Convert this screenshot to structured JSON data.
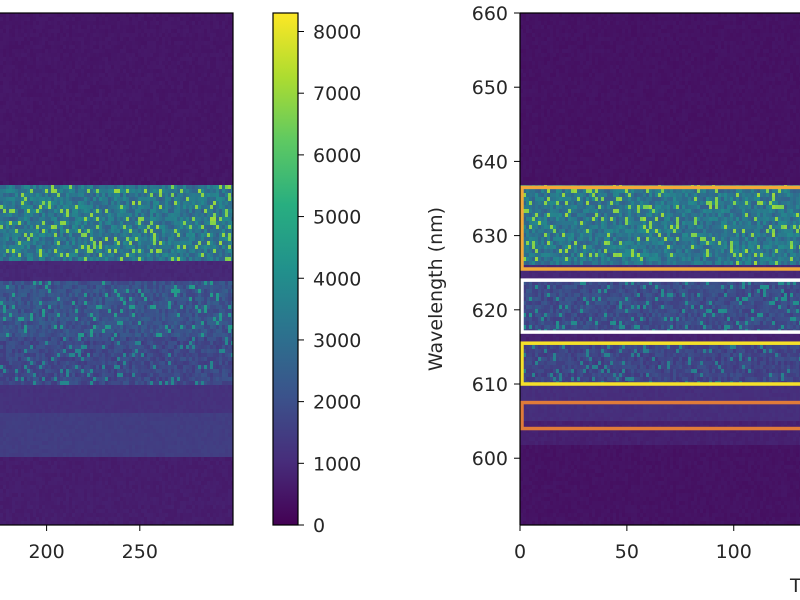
{
  "chart_data": [
    {
      "type": "heatmap",
      "panel": "left",
      "xlabel": "",
      "ylabel": "",
      "x_ticks": [
        200,
        250
      ],
      "xlim_visible": [
        175,
        300
      ],
      "colormap": "viridis",
      "bands": [
        {
          "y_from": 0.0,
          "y_to": 0.33,
          "intensity": 0.05
        },
        {
          "y_from": 0.33,
          "y_to": 0.48,
          "intensity": 0.3,
          "noise": 0.55
        },
        {
          "y_from": 0.48,
          "y_to": 0.52,
          "intensity": 0.1
        },
        {
          "y_from": 0.52,
          "y_to": 0.63,
          "intensity": 0.2,
          "noise": 0.35
        },
        {
          "y_from": 0.63,
          "y_to": 0.72,
          "intensity": 0.17,
          "noise": 0.3
        },
        {
          "y_from": 0.72,
          "y_to": 0.78,
          "intensity": 0.13
        },
        {
          "y_from": 0.78,
          "y_to": 0.86,
          "intensity": 0.17
        },
        {
          "y_from": 0.86,
          "y_to": 1.0,
          "intensity": 0.07
        }
      ]
    },
    {
      "type": "colorbar",
      "ticks": [
        0,
        1000,
        2000,
        3000,
        4000,
        5000,
        6000,
        7000,
        8000
      ],
      "range": [
        0,
        8300
      ],
      "colormap": "viridis"
    },
    {
      "type": "heatmap",
      "panel": "right",
      "ylabel": "Wavelength (nm)",
      "xlabel": "T",
      "y_ticks": [
        600,
        610,
        620,
        630,
        640,
        650,
        660
      ],
      "ylim": [
        591,
        660
      ],
      "x_ticks": [
        0,
        50,
        100
      ],
      "xlim_visible": [
        0,
        131
      ],
      "colormap": "viridis",
      "bands": [
        {
          "y_from": 660,
          "y_to": 637,
          "intensity": 0.04
        },
        {
          "y_from": 637,
          "y_to": 626,
          "intensity": 0.3,
          "noise": 0.55
        },
        {
          "y_from": 626,
          "y_to": 624,
          "intensity": 0.1
        },
        {
          "y_from": 624,
          "y_to": 617,
          "intensity": 0.18,
          "noise": 0.32
        },
        {
          "y_from": 617,
          "y_to": 615,
          "intensity": 0.08
        },
        {
          "y_from": 615,
          "y_to": 610,
          "intensity": 0.16,
          "noise": 0.28
        },
        {
          "y_from": 610,
          "y_to": 605,
          "intensity": 0.12
        },
        {
          "y_from": 605,
          "y_to": 602,
          "intensity": 0.08
        },
        {
          "y_from": 602,
          "y_to": 591,
          "intensity": 0.04
        }
      ],
      "highlight_boxes": [
        {
          "name": "orange-box",
          "y_min": 625.5,
          "y_max": 636.5,
          "color": "#f2a93b"
        },
        {
          "name": "white-box",
          "y_min": 617.0,
          "y_max": 624.0,
          "color": "#ffffff"
        },
        {
          "name": "yellow-box",
          "y_min": 610.0,
          "y_max": 615.5,
          "color": "#f5e12a"
        },
        {
          "name": "dark-orange-box",
          "y_min": 604.0,
          "y_max": 607.5,
          "color": "#e07b39"
        }
      ]
    }
  ]
}
